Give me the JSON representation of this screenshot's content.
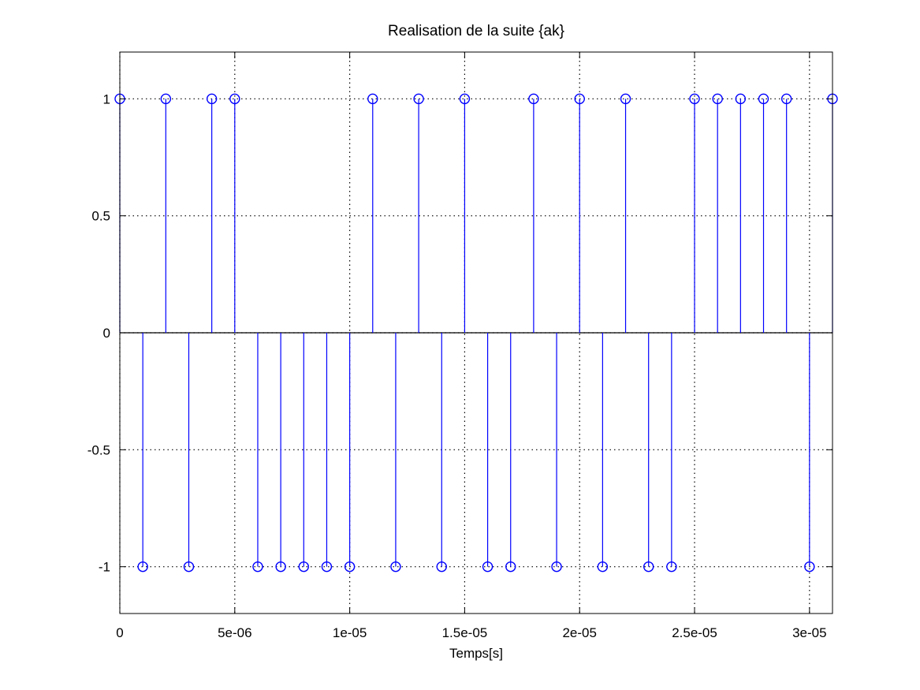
{
  "chart_data": {
    "type": "stem",
    "title": "Realisation de la suite {ak}",
    "xlabel": "Temps[s]",
    "ylabel": "",
    "xlim": [
      0,
      3.1e-05
    ],
    "ylim": [
      -1.2,
      1.2
    ],
    "grid": true,
    "x_ticks": [
      0,
      5e-06,
      1e-05,
      1.5e-05,
      2e-05,
      2.5e-05,
      3e-05
    ],
    "x_tick_labels": [
      "0",
      "5e-06",
      "1e-05",
      "1.5e-05",
      "2e-05",
      "2.5e-05",
      "3e-05"
    ],
    "y_ticks": [
      -1,
      -0.5,
      0,
      0.5,
      1
    ],
    "y_tick_labels": [
      "-1",
      "-0.5",
      "0",
      "0.5",
      "1"
    ],
    "series": [
      {
        "name": "ak",
        "color": "#0000ff",
        "marker": "circle",
        "x": [
          0,
          1e-06,
          2e-06,
          3e-06,
          4e-06,
          5e-06,
          6e-06,
          7e-06,
          8e-06,
          9e-06,
          1e-05,
          1.1e-05,
          1.2e-05,
          1.3e-05,
          1.4e-05,
          1.5e-05,
          1.6e-05,
          1.7e-05,
          1.8e-05,
          1.9e-05,
          2e-05,
          2.1e-05,
          2.2e-05,
          2.3e-05,
          2.4e-05,
          2.5e-05,
          2.6e-05,
          2.7e-05,
          2.8e-05,
          2.9e-05,
          3e-05,
          3.1e-05
        ],
        "values": [
          1,
          -1,
          1,
          -1,
          1,
          1,
          -1,
          -1,
          -1,
          -1,
          -1,
          1,
          -1,
          1,
          -1,
          1,
          -1,
          -1,
          1,
          -1,
          1,
          -1,
          1,
          -1,
          -1,
          1,
          1,
          1,
          1,
          1,
          -1,
          1
        ]
      }
    ]
  }
}
